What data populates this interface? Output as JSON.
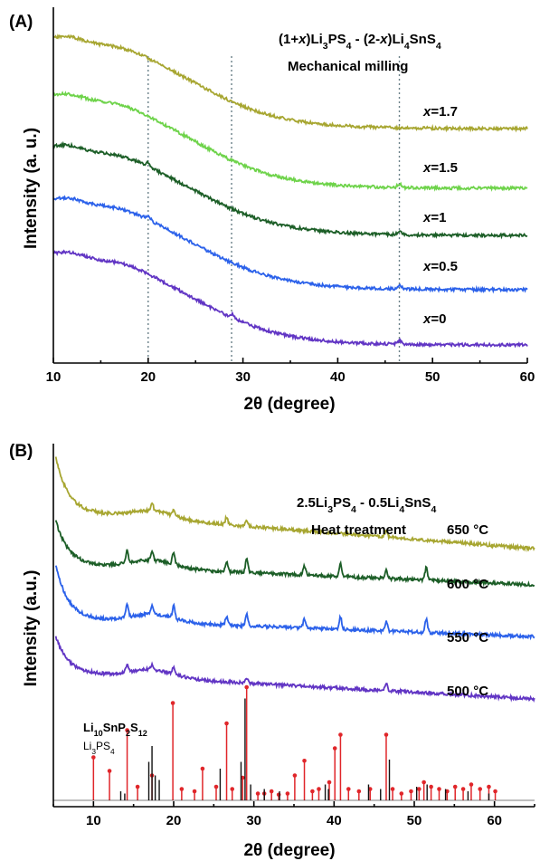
{
  "chart_data": [
    {
      "panel": "(A)",
      "type": "line",
      "title_parts": [
        "(1+",
        "x",
        ")Li",
        "3",
        "PS",
        "4",
        " - (2-",
        "x",
        ")Li",
        "4",
        "SnS",
        "4"
      ],
      "subtitle": "Mechanical milling",
      "xlabel": "2θ (degree)",
      "ylabel": "Intensity (a. u.)",
      "xlim": [
        10,
        60
      ],
      "xticks": [
        "10",
        "20",
        "30",
        "40",
        "50",
        "60"
      ],
      "reference_lines_x": [
        20,
        28.8,
        46.5
      ],
      "series": [
        {
          "name": "x=1.7",
          "label_var": "x",
          "label_rest": "=1.7",
          "color": "#a7a631",
          "peaks": []
        },
        {
          "name": "x=1.5",
          "label_var": "x",
          "label_rest": "=1.5",
          "color": "#6ed34a",
          "peaks": [
            46.5
          ]
        },
        {
          "name": "x=1",
          "label_var": "x",
          "label_rest": "=1",
          "color": "#1c5e27",
          "peaks": [
            20,
            46.5
          ]
        },
        {
          "name": "x=0.5",
          "label_var": "x",
          "label_rest": "=0.5",
          "color": "#2b61ea",
          "peaks": [
            20,
            46.5
          ]
        },
        {
          "name": "x=0",
          "label_var": "x",
          "label_rest": "=0",
          "color": "#6135c4",
          "peaks": [
            28.8,
            46.5
          ]
        }
      ]
    },
    {
      "panel": "(B)",
      "type": "line",
      "title_parts": [
        "2.5Li",
        "3",
        "PS",
        "4",
        " - 0.5Li",
        "4",
        "SnS",
        "4"
      ],
      "subtitle": "Heat treatment",
      "xlabel": "2θ (degree)",
      "ylabel": "Intensity (a.u.)",
      "xlim": [
        5,
        65
      ],
      "xticks": [
        "10",
        "20",
        "30",
        "40",
        "50",
        "60"
      ],
      "series": [
        {
          "name": "650 °C",
          "color": "#a7a631",
          "peaks": [
            17.3,
            20,
            26.6,
            29.1,
            46.5
          ]
        },
        {
          "name": "600 °C",
          "color": "#1c5e27",
          "peaks": [
            14.2,
            17.3,
            20,
            26.6,
            29.1,
            36.3,
            40.8,
            46.5,
            51.5
          ]
        },
        {
          "name": "550 °C",
          "color": "#2b61ea",
          "peaks": [
            14.2,
            17.3,
            20,
            26.6,
            29.1,
            36.3,
            40.8,
            46.5,
            51.5
          ]
        },
        {
          "name": "500 °C",
          "color": "#6135c4",
          "peaks": [
            14.2,
            17.3,
            20,
            29.1,
            46.5
          ]
        }
      ],
      "reference_patterns": [
        {
          "name_parts": [
            "Li",
            "10",
            "SnP",
            "2",
            "S",
            "12"
          ],
          "color": "#e0262a",
          "peaks": [
            [
              10,
              0.38
            ],
            [
              12,
              0.26
            ],
            [
              14.2,
              0.62
            ],
            [
              15.5,
              0.12
            ],
            [
              17.3,
              0.22
            ],
            [
              19.9,
              0.86
            ],
            [
              21,
              0.1
            ],
            [
              22.6,
              0.08
            ],
            [
              23.6,
              0.28
            ],
            [
              25.3,
              0.12
            ],
            [
              26.6,
              0.68
            ],
            [
              27.3,
              0.1
            ],
            [
              28.6,
              0.2
            ],
            [
              29.1,
              1.0
            ],
            [
              30.5,
              0.06
            ],
            [
              31.3,
              0.06
            ],
            [
              32.2,
              0.08
            ],
            [
              33.1,
              0.05
            ],
            [
              34.2,
              0.06
            ],
            [
              35.1,
              0.22
            ],
            [
              36.3,
              0.35
            ],
            [
              37.3,
              0.08
            ],
            [
              38.1,
              0.1
            ],
            [
              39.4,
              0.16
            ],
            [
              40.1,
              0.46
            ],
            [
              40.8,
              0.58
            ],
            [
              41.8,
              0.1
            ],
            [
              43.1,
              0.08
            ],
            [
              44.5,
              0.1
            ],
            [
              46.5,
              0.58
            ],
            [
              47.3,
              0.1
            ],
            [
              48.4,
              0.06
            ],
            [
              49.6,
              0.08
            ],
            [
              50.6,
              0.1
            ],
            [
              51.2,
              0.16
            ],
            [
              52.1,
              0.12
            ],
            [
              53.1,
              0.1
            ],
            [
              54.1,
              0.08
            ],
            [
              55.1,
              0.12
            ],
            [
              56.1,
              0.1
            ],
            [
              57.1,
              0.14
            ],
            [
              58.2,
              0.1
            ],
            [
              59.3,
              0.12
            ],
            [
              60.1,
              0.08
            ]
          ]
        },
        {
          "name_parts": [
            "Li",
            "3",
            "PS",
            "4"
          ],
          "color": "#111111",
          "peaks": [
            [
              13.4,
              0.08
            ],
            [
              13.9,
              0.06
            ],
            [
              16.9,
              0.34
            ],
            [
              17.3,
              0.48
            ],
            [
              17.7,
              0.22
            ],
            [
              18.2,
              0.18
            ],
            [
              25.8,
              0.28
            ],
            [
              28.4,
              0.34
            ],
            [
              28.9,
              0.9
            ],
            [
              29.6,
              0.14
            ],
            [
              31.3,
              0.1
            ],
            [
              33.2,
              0.08
            ],
            [
              38.9,
              0.14
            ],
            [
              39.3,
              0.1
            ],
            [
              44.3,
              0.14
            ],
            [
              45.8,
              0.1
            ],
            [
              46.9,
              0.36
            ],
            [
              50.3,
              0.12
            ],
            [
              51.6,
              0.14
            ],
            [
              53.9,
              0.1
            ],
            [
              56.7,
              0.08
            ],
            [
              59.3,
              0.06
            ]
          ]
        }
      ]
    }
  ]
}
